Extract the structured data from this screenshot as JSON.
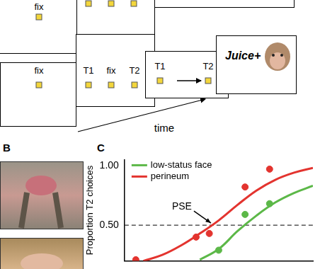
{
  "panel_a": {
    "top_row_text": "fix",
    "bottom_row": [
      [
        "fix"
      ],
      [
        "T1",
        "fix",
        "T2"
      ],
      [
        "T1",
        "T2"
      ],
      [
        "Juice+"
      ]
    ],
    "time_label": "time"
  },
  "panel_b": {
    "panel_label": "B"
  },
  "chart_data": {
    "type": "line",
    "panel_label": "C",
    "y_label": "Proportion T2 choices",
    "xlim": [
      0,
      10
    ],
    "ylim": [
      0.2,
      1.05
    ],
    "yticks": [
      {
        "value": 0.5,
        "label": "0.50"
      },
      {
        "value": 1,
        "label": "1.00"
      }
    ],
    "tick_labels": "y",
    "grid": false,
    "legend": "upper left",
    "series": [
      {
        "name": "low-status face",
        "color": "#5cb848",
        "x": [
          5.0,
          6.4,
          7.7
        ],
        "values": [
          0.29,
          0.59,
          0.68
        ],
        "fit_x": [
          4,
          5,
          6,
          7,
          8,
          9,
          10
        ],
        "fit": [
          0.21,
          0.3,
          0.45,
          0.58,
          0.69,
          0.77,
          0.83
        ]
      },
      {
        "name": "perineum",
        "color": "#e3342f",
        "x": [
          0.6,
          3.8,
          4.5,
          6.4,
          7.7
        ],
        "values": [
          0.21,
          0.4,
          0.43,
          0.82,
          0.97
        ],
        "fit_x": [
          1,
          2,
          3,
          4,
          5,
          6,
          7,
          8,
          9,
          10
        ],
        "fit": [
          0.2,
          0.25,
          0.33,
          0.43,
          0.54,
          0.67,
          0.79,
          0.88,
          0.94,
          0.98
        ]
      }
    ],
    "reference_line": {
      "y": 0.5,
      "line_style": "dashed"
    },
    "annotations": [
      {
        "text": "PSE",
        "x": 4.7,
        "y": 0.5
      }
    ]
  }
}
